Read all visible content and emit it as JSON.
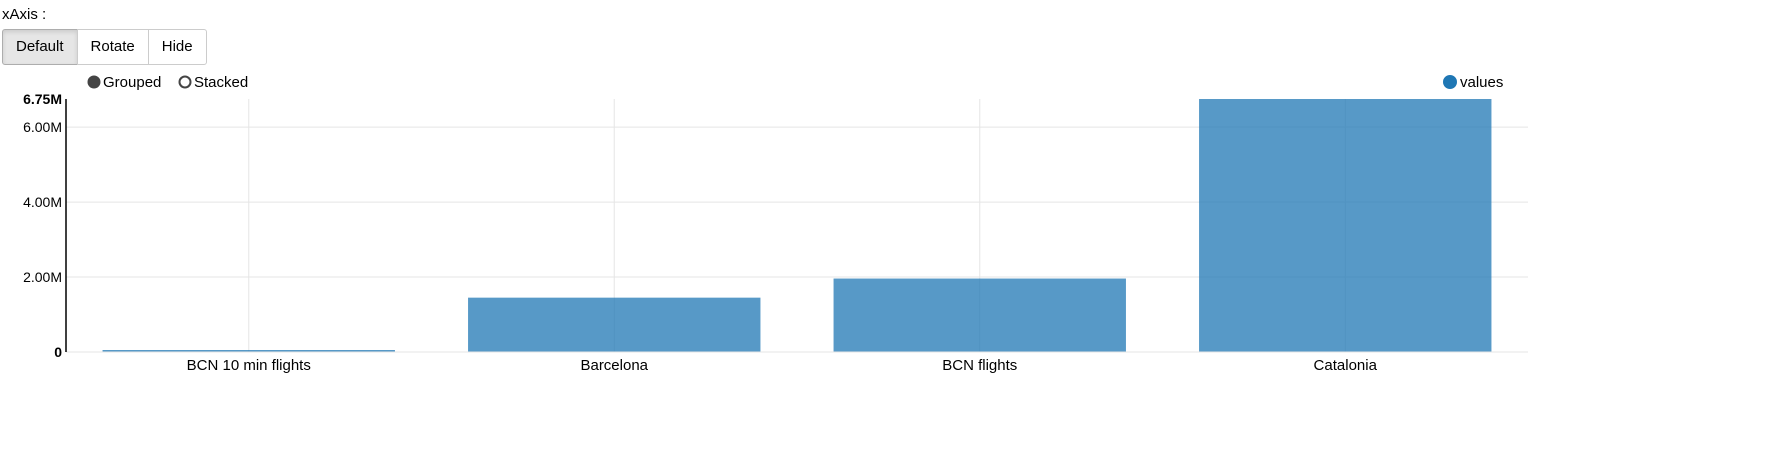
{
  "controls": {
    "xaxis_label": "xAxis :",
    "buttons": [
      {
        "label": "Default",
        "active": true
      },
      {
        "label": "Rotate",
        "active": false
      },
      {
        "label": "Hide",
        "active": false
      }
    ],
    "mode_options": [
      {
        "label": "Grouped",
        "selected": true
      },
      {
        "label": "Stacked",
        "selected": false
      }
    ]
  },
  "colors": {
    "bar": "#1f77b4",
    "grid": "#e5e5e5",
    "axis": "#000000"
  },
  "chart_data": {
    "type": "bar",
    "categories": [
      "BCN 10 min flights",
      "Barcelona",
      "BCN flights",
      "Catalonia"
    ],
    "series": [
      {
        "name": "values",
        "values": [
          50000,
          1450000,
          1960000,
          6750000
        ]
      }
    ],
    "ylim": [
      0,
      6750000
    ],
    "yticks": [
      0,
      2000000,
      4000000,
      6000000,
      6750000
    ],
    "ytick_labels": [
      "0",
      "2.00M",
      "4.00M",
      "6.00M",
      "6.75M"
    ],
    "grid": true,
    "legend": "top-right"
  }
}
